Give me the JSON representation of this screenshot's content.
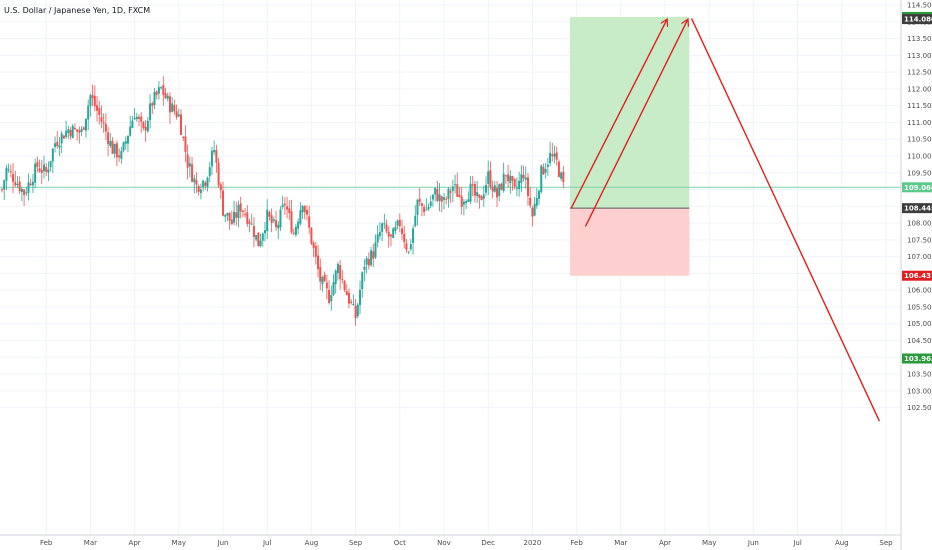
{
  "header": {
    "title": "U.S. Dollar / Japanese Yen, 1D, FXCM"
  },
  "colors": {
    "up": "#26a69a",
    "down": "#ef5350",
    "grid": "#f0f3fa",
    "target_zone": "#c8ebc8",
    "stop_zone": "#fdcfcf",
    "arrow": "#e0201c",
    "current_line": "#7dd3a8",
    "badge_current": "#5cc98a",
    "badge_entry": "#3d3d3d",
    "badge_top": "#2a9a3a",
    "badge_stop": "#e02020",
    "badge_low": "#2a9a3a",
    "badge_dark": "#3d3d3d"
  },
  "chart_data": {
    "type": "candlestick",
    "title": "U.S. Dollar / Japanese Yen, 1D, FXCM",
    "y_ticks": [
      "114.500",
      "114.000",
      "113.500",
      "113.000",
      "112.500",
      "112.000",
      "111.500",
      "111.000",
      "110.500",
      "110.000",
      "109.500",
      "109.000",
      "108.500",
      "108.000",
      "107.500",
      "107.000",
      "106.500",
      "106.000",
      "105.500",
      "105.000",
      "104.500",
      "104.000",
      "103.500",
      "103.000",
      "102.500"
    ],
    "ylim": [
      102.1,
      114.6
    ],
    "x_ticks": [
      {
        "label": "Feb",
        "month": 1.0
      },
      {
        "label": "Mar",
        "month": 2.0
      },
      {
        "label": "Apr",
        "month": 3.0
      },
      {
        "label": "May",
        "month": 4.0
      },
      {
        "label": "Jun",
        "month": 5.0
      },
      {
        "label": "Jul",
        "month": 6.0
      },
      {
        "label": "Aug",
        "month": 7.0
      },
      {
        "label": "Sep",
        "month": 8.0
      },
      {
        "label": "Oct",
        "month": 9.0
      },
      {
        "label": "Nov",
        "month": 10.0
      },
      {
        "label": "Dec",
        "month": 11.0
      },
      {
        "label": "2020",
        "month": 12.0
      },
      {
        "label": "Feb",
        "month": 13.0
      },
      {
        "label": "Mar",
        "month": 14.0
      },
      {
        "label": "Apr",
        "month": 15.0
      },
      {
        "label": "May",
        "month": 16.0
      },
      {
        "label": "Jun",
        "month": 17.0
      },
      {
        "label": "Jul",
        "month": 18.0
      },
      {
        "label": "Aug",
        "month": 19.0
      },
      {
        "label": "Sep",
        "month": 20.0
      }
    ],
    "close_path": [
      [
        0.0,
        109.0
      ],
      [
        0.1,
        109.6
      ],
      [
        0.3,
        109.3
      ],
      [
        0.5,
        108.9
      ],
      [
        0.8,
        109.7
      ],
      [
        1.0,
        109.5
      ],
      [
        1.2,
        110.4
      ],
      [
        1.5,
        110.8
      ],
      [
        1.8,
        110.7
      ],
      [
        2.0,
        111.8
      ],
      [
        2.1,
        111.5
      ],
      [
        2.3,
        110.9
      ],
      [
        2.5,
        110.2
      ],
      [
        2.7,
        110.0
      ],
      [
        2.9,
        110.9
      ],
      [
        3.0,
        111.3
      ],
      [
        3.2,
        110.7
      ],
      [
        3.4,
        111.6
      ],
      [
        3.6,
        112.0
      ],
      [
        3.8,
        111.5
      ],
      [
        4.0,
        111.2
      ],
      [
        4.2,
        109.8
      ],
      [
        4.4,
        109.1
      ],
      [
        4.6,
        109.3
      ],
      [
        4.8,
        110.2
      ],
      [
        5.0,
        108.4
      ],
      [
        5.2,
        108.0
      ],
      [
        5.4,
        108.5
      ],
      [
        5.6,
        108.1
      ],
      [
        5.8,
        107.4
      ],
      [
        6.0,
        108.2
      ],
      [
        6.2,
        107.8
      ],
      [
        6.4,
        108.6
      ],
      [
        6.6,
        107.7
      ],
      [
        6.8,
        108.7
      ],
      [
        7.0,
        107.5
      ],
      [
        7.2,
        106.3
      ],
      [
        7.4,
        105.8
      ],
      [
        7.6,
        106.7
      ],
      [
        7.8,
        105.9
      ],
      [
        8.0,
        105.2
      ],
      [
        8.2,
        106.8
      ],
      [
        8.4,
        107.1
      ],
      [
        8.6,
        107.9
      ],
      [
        8.8,
        107.5
      ],
      [
        9.0,
        108.0
      ],
      [
        9.2,
        107.1
      ],
      [
        9.4,
        108.6
      ],
      [
        9.6,
        108.4
      ],
      [
        9.8,
        108.9
      ],
      [
        10.0,
        108.6
      ],
      [
        10.2,
        109.1
      ],
      [
        10.4,
        108.7
      ],
      [
        10.6,
        109.0
      ],
      [
        10.8,
        108.6
      ],
      [
        11.0,
        109.4
      ],
      [
        11.2,
        108.8
      ],
      [
        11.4,
        109.5
      ],
      [
        11.6,
        108.9
      ],
      [
        11.8,
        109.5
      ],
      [
        12.0,
        108.2
      ],
      [
        12.2,
        109.5
      ],
      [
        12.4,
        110.0
      ],
      [
        12.55,
        109.8
      ],
      [
        12.7,
        109.1
      ]
    ],
    "current_price": {
      "label": "109.066",
      "value": 109.066
    },
    "position": {
      "start_month": 12.85,
      "end_month": 15.55,
      "target": {
        "label": "114.144",
        "value": 114.144
      },
      "entry": {
        "label": "108.445",
        "value": 108.445
      },
      "stop": {
        "label": "106.431",
        "value": 106.431
      }
    },
    "badge_114080": {
      "label": "114.080",
      "value": 114.08
    },
    "badge_103963": {
      "label": "103.963",
      "value": 103.963
    },
    "arrows": [
      {
        "from": [
          12.88,
          108.45
        ],
        "to": [
          15.05,
          114.08
        ]
      },
      {
        "from": [
          13.2,
          107.9
        ],
        "to": [
          15.52,
          114.08
        ]
      }
    ],
    "projection": {
      "from": [
        15.6,
        114.1
      ],
      "to": [
        19.85,
        102.1
      ]
    }
  }
}
